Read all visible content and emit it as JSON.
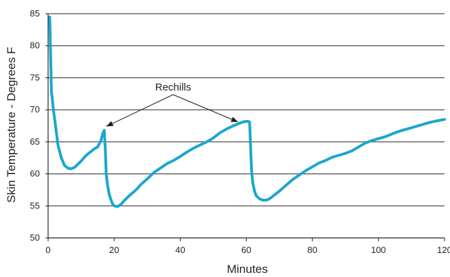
{
  "chart_data": {
    "type": "line",
    "title": "",
    "xlabel": "Minutes",
    "ylabel": "Skin Temperature - Degrees F",
    "xlim": [
      0,
      120
    ],
    "ylim": [
      50,
      85
    ],
    "x_ticks": [
      0,
      20,
      40,
      60,
      80,
      100,
      120
    ],
    "y_ticks": [
      50,
      55,
      60,
      65,
      70,
      75,
      80,
      85
    ],
    "grid": "horizontal",
    "legend": "none",
    "series": [
      {
        "color": "#1aa7cd",
        "x": [
          0.5,
          0.8,
          1,
          1.3,
          1.6,
          2,
          2.5,
          3,
          4,
          5,
          6,
          7,
          8,
          9,
          10,
          11,
          12,
          13,
          14,
          15,
          16,
          16.5,
          17,
          17.3,
          17.6,
          18,
          18.5,
          19,
          19.5,
          20,
          21,
          22,
          23,
          24,
          25,
          26,
          27,
          28,
          30,
          32,
          34,
          36,
          38,
          40,
          42,
          44,
          46,
          48,
          50,
          52,
          54,
          56,
          58,
          59,
          60,
          60.5,
          61,
          61.3,
          61.6,
          62,
          62.5,
          63,
          64,
          65,
          66,
          67,
          68,
          70,
          72,
          74,
          76,
          78,
          80,
          82,
          84,
          86,
          88,
          90,
          92,
          94,
          96,
          98,
          100,
          102,
          104,
          106,
          108,
          110,
          112,
          114,
          116,
          118,
          120
        ],
        "y": [
          84.5,
          78,
          73,
          71.5,
          70,
          68.5,
          66.5,
          64.5,
          62.5,
          61.3,
          60.9,
          60.8,
          61,
          61.5,
          62,
          62.6,
          63.1,
          63.5,
          63.9,
          64.2,
          65.2,
          66.2,
          66.8,
          64,
          60,
          58.2,
          56.8,
          56,
          55.3,
          55,
          54.9,
          55.2,
          55.8,
          56.3,
          56.8,
          57.2,
          57.7,
          58.3,
          59.2,
          60.2,
          60.9,
          61.6,
          62.1,
          62.7,
          63.4,
          64,
          64.5,
          65,
          65.6,
          66.4,
          67,
          67.5,
          67.9,
          68.1,
          68.2,
          68.2,
          68.1,
          64,
          60.5,
          58.5,
          57.3,
          56.6,
          56.1,
          55.9,
          55.9,
          56.1,
          56.5,
          57.3,
          58.2,
          59.1,
          59.8,
          60.5,
          61.1,
          61.7,
          62.1,
          62.6,
          62.9,
          63.2,
          63.6,
          64.2,
          64.8,
          65.2,
          65.5,
          65.8,
          66.2,
          66.6,
          66.9,
          67.2,
          67.5,
          67.8,
          68.1,
          68.3,
          68.5
        ]
      }
    ],
    "annotations": [
      {
        "text": "Rechills",
        "targets": [
          {
            "x": 17.6,
            "y": 67.4
          },
          {
            "x": 57.5,
            "y": 68.1
          }
        ]
      }
    ]
  }
}
